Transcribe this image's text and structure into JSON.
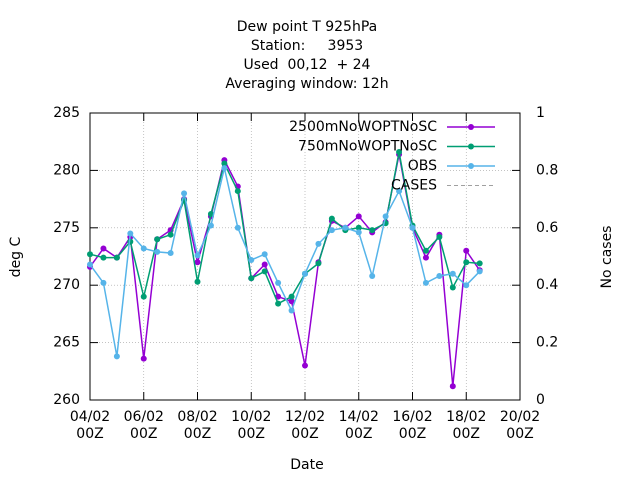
{
  "chart_data": {
    "type": "line",
    "title": [
      "Dew point T 925hPa",
      "Station:     3953",
      "Used  00,12  + 24",
      "Averaging window: 12h"
    ],
    "xlabel": "Date",
    "ylabel": "deg C",
    "y2label": "No cases",
    "x": [
      4,
      4.5,
      5,
      5.5,
      6,
      6.5,
      7,
      7.5,
      8,
      8.5,
      9,
      9.5,
      10,
      10.5,
      11,
      11.5,
      12,
      12.5,
      13,
      13.5,
      14,
      14.5,
      15,
      15.5,
      16,
      16.5,
      17,
      17.5,
      18,
      18.5
    ],
    "series": [
      {
        "name": "2500mNoWOPTNoSC",
        "color": "#9400d3",
        "values": [
          271.6,
          273.2,
          272.4,
          274.2,
          263.6,
          274.0,
          274.8,
          277.5,
          272.0,
          276.0,
          280.9,
          278.6,
          270.6,
          271.8,
          269.0,
          268.6,
          263.0,
          272.0,
          275.6,
          275.0,
          276.0,
          274.6,
          275.5,
          281.4,
          275.0,
          272.4,
          274.4,
          261.2,
          273.0,
          271.3
        ]
      },
      {
        "name": "750mNoWOPTNoSC",
        "color": "#009e73",
        "values": [
          272.7,
          272.4,
          272.4,
          273.8,
          269.0,
          274.0,
          274.4,
          277.4,
          270.3,
          276.2,
          280.6,
          278.2,
          270.6,
          271.2,
          268.4,
          269.0,
          271.0,
          271.9,
          275.8,
          274.8,
          275.0,
          274.8,
          275.4,
          281.6,
          275.2,
          273.0,
          274.2,
          269.8,
          272.0,
          271.9
        ]
      },
      {
        "name": "OBS",
        "color": "#56b4e9",
        "values": [
          271.8,
          270.2,
          263.8,
          274.5,
          273.2,
          272.9,
          272.8,
          278.0,
          272.6,
          275.2,
          280.2,
          275.0,
          272.2,
          272.7,
          270.2,
          267.8,
          271.0,
          273.6,
          274.8,
          275.0,
          274.6,
          270.8,
          276.0,
          278.2,
          275.0,
          270.2,
          270.8,
          271.0,
          270.0,
          271.2
        ]
      },
      {
        "name": "CASES",
        "color": "#a0a0a0",
        "dash": true,
        "axis": "y2",
        "values": [
          null,
          null,
          null,
          null,
          null,
          null,
          null,
          null,
          null,
          null,
          null,
          null,
          null,
          null,
          null,
          null,
          null,
          null,
          null,
          null,
          null,
          null,
          null,
          null,
          null,
          null,
          null,
          null,
          null,
          null
        ]
      }
    ],
    "xlim": [
      4,
      20
    ],
    "xticks": [
      {
        "value": 4,
        "label": "04/02\n00Z"
      },
      {
        "value": 6,
        "label": "06/02\n00Z"
      },
      {
        "value": 8,
        "label": "08/02\n00Z"
      },
      {
        "value": 10,
        "label": "10/02\n00Z"
      },
      {
        "value": 12,
        "label": "12/02\n00Z"
      },
      {
        "value": 14,
        "label": "14/02\n00Z"
      },
      {
        "value": 16,
        "label": "16/02\n00Z"
      },
      {
        "value": 18,
        "label": "18/02\n00Z"
      },
      {
        "value": 20,
        "label": "20/02\n00Z"
      }
    ],
    "ylim": [
      260,
      285
    ],
    "yticks": [
      260,
      265,
      270,
      275,
      280,
      285
    ],
    "y2lim": [
      0,
      1
    ],
    "y2ticks": [
      0,
      0.2,
      0.4,
      0.6,
      0.8,
      1
    ],
    "grid": true,
    "legend": "top-right"
  }
}
